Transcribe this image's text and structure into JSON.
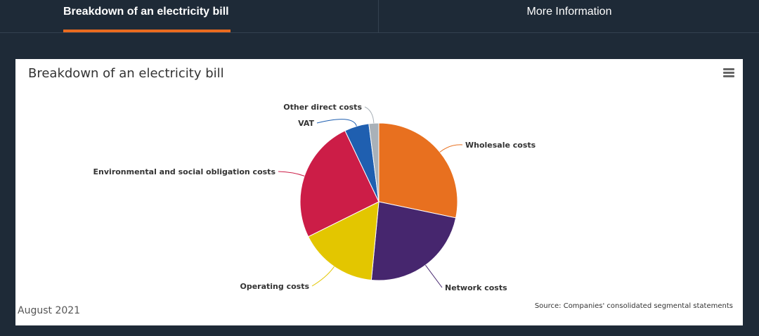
{
  "tabs": [
    {
      "label": "Breakdown of an electricity bill",
      "active": true
    },
    {
      "label": "More Information",
      "active": false
    }
  ],
  "colors": {
    "background": "#1e2a37",
    "accent": "#e96b1f"
  },
  "chart_menu_icon": "hamburger-menu-icon",
  "chart_data": {
    "type": "pie",
    "title": "Breakdown of an electricity bill",
    "date": "August 2021",
    "source": "Source: Companies' consolidated segmental statements",
    "slices": [
      {
        "label": "Wholesale costs",
        "value": 28,
        "color": "#e8701f"
      },
      {
        "label": "Network costs",
        "value": 23,
        "color": "#46266e"
      },
      {
        "label": "Operating costs",
        "value": 16,
        "color": "#e3c600"
      },
      {
        "label": "Environmental and social obligation costs",
        "value": 25,
        "color": "#cc1d47"
      },
      {
        "label": "VAT",
        "value": 5,
        "color": "#1f5fb0"
      },
      {
        "label": "Other direct costs",
        "value": 2,
        "color": "#a9b1b8"
      }
    ]
  }
}
